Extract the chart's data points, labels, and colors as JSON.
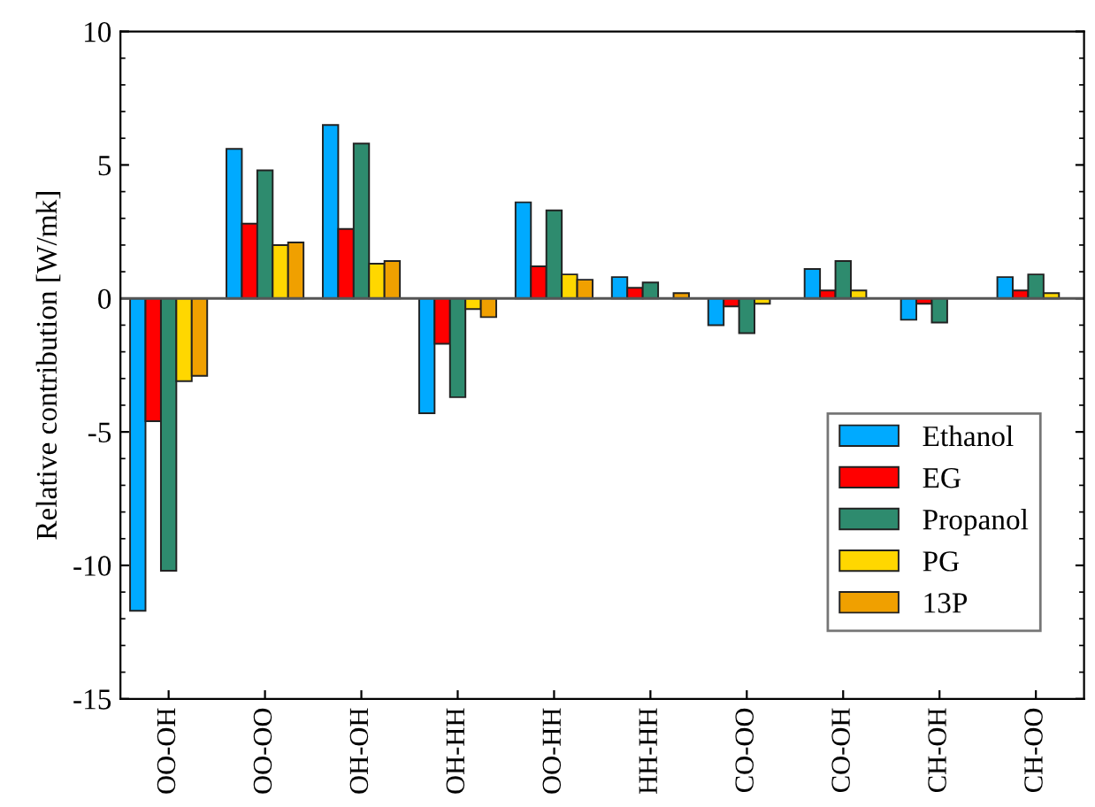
{
  "chart_data": {
    "type": "bar",
    "ylabel": "Relative contribution [W/mk]",
    "categories": [
      "OO-OH",
      "OO-OO",
      "OH-OH",
      "OH-HH",
      "OO-HH",
      "HH-HH",
      "CO-OO",
      "CO-OH",
      "CH-OH",
      "CH-OO"
    ],
    "series": [
      {
        "name": "Ethanol",
        "color": "#00aaff",
        "values": [
          -11.7,
          5.6,
          6.5,
          -4.3,
          3.6,
          0.8,
          -1.0,
          1.1,
          -0.8,
          0.8
        ]
      },
      {
        "name": "EG",
        "color": "#ff0000",
        "values": [
          -4.6,
          2.8,
          2.6,
          -1.7,
          1.2,
          0.4,
          -0.3,
          0.3,
          -0.2,
          0.3
        ]
      },
      {
        "name": "Propanol",
        "color": "#2e8b6e",
        "values": [
          -10.2,
          4.8,
          5.8,
          -3.7,
          3.3,
          0.6,
          -1.3,
          1.4,
          -0.9,
          0.9
        ]
      },
      {
        "name": "PG",
        "color": "#ffd700",
        "values": [
          -3.1,
          2.0,
          1.3,
          -0.4,
          0.9,
          null,
          -0.2,
          0.3,
          null,
          0.2
        ]
      },
      {
        "name": "13P",
        "color": "#f0a000",
        "values": [
          -2.9,
          2.1,
          1.4,
          -0.7,
          0.7,
          0.2,
          null,
          null,
          null,
          null
        ]
      }
    ],
    "ylim": [
      -15,
      10
    ],
    "yticks": [
      -15,
      -10,
      -5,
      0,
      5,
      10
    ],
    "grid": false,
    "ref_lines": [
      {
        "axis": "y",
        "value": 0,
        "color": "#555555"
      }
    ],
    "legend": "bottom right"
  }
}
